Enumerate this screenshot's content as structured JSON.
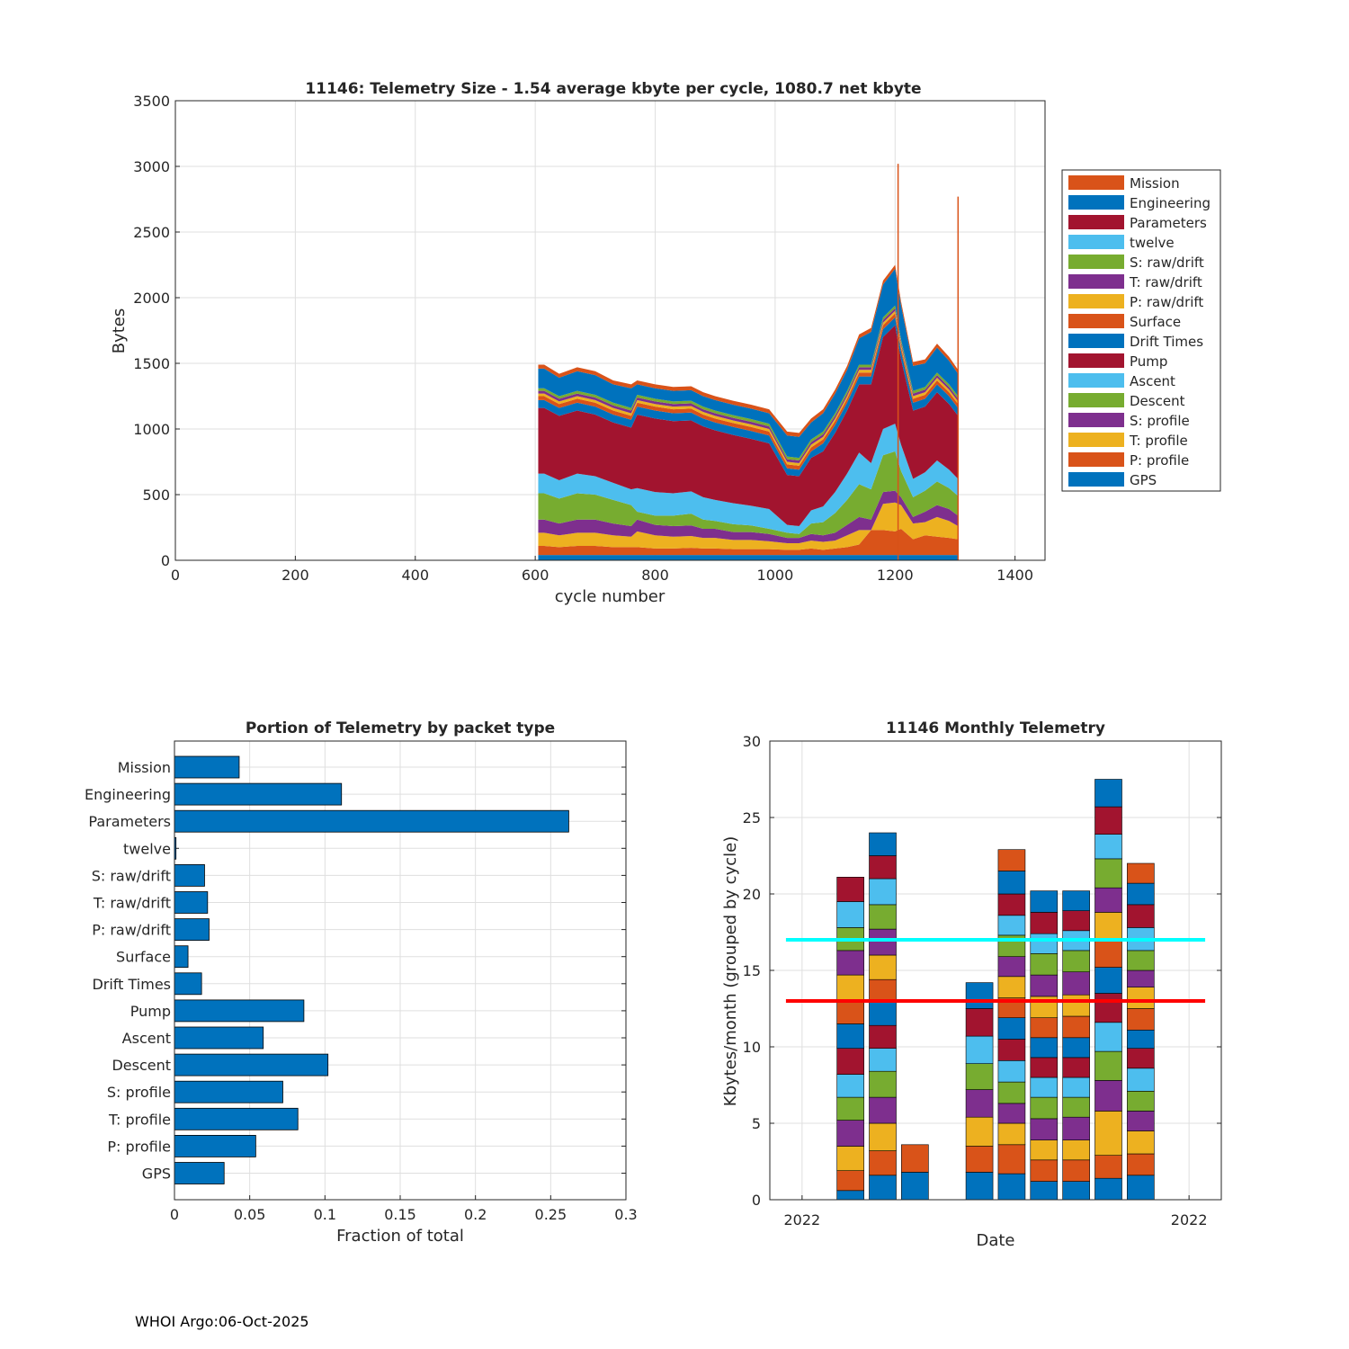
{
  "footer": "WHOI Argo:06-Oct-2025",
  "colors": {
    "orange": "#D95319",
    "blue": "#0072BD",
    "darkred": "#A2142F",
    "lightblue": "#4DBEEE",
    "green": "#77AC30",
    "purple": "#7E2F8E",
    "yellow": "#EDB120",
    "cyan": "#00FFFF",
    "red": "#FF0000",
    "grid": "#DFDFDF",
    "axis": "#262626"
  },
  "chart_data": [
    {
      "id": "telemetry-size",
      "type": "area",
      "title": "11146: Telemetry Size - 1.54 average kbyte per cycle, 1080.7 net kbyte",
      "xlabel": "cycle number",
      "ylabel": "Bytes",
      "xlim": [
        0,
        1450
      ],
      "ylim": [
        0,
        3500
      ],
      "xticks": [
        "0",
        "200",
        "400",
        "600",
        "800",
        "1000",
        "1200",
        "1400"
      ],
      "xtick_values": [
        0,
        200,
        400,
        600,
        800,
        1000,
        1200,
        1400
      ],
      "yticks": [
        "0",
        "500",
        "1000",
        "1500",
        "2000",
        "2500",
        "3000",
        "3500"
      ],
      "ytick_values": [
        0,
        500,
        1000,
        1500,
        2000,
        2500,
        3000,
        3500
      ],
      "grid": true,
      "legend_position": "outside-right",
      "legend": [
        "Mission",
        "Engineering",
        "Parameters",
        "twelve",
        "S: raw/drift",
        "T: raw/drift",
        "P: raw/drift",
        "Surface",
        "Drift Times",
        "Pump",
        "Ascent",
        "Descent",
        "S: profile",
        "T: profile",
        "P: profile",
        "GPS"
      ],
      "legend_colors": [
        "#D95319",
        "#0072BD",
        "#A2142F",
        "#4DBEEE",
        "#77AC30",
        "#7E2F8E",
        "#EDB120",
        "#D95319",
        "#0072BD",
        "#A2142F",
        "#4DBEEE",
        "#77AC30",
        "#7E2F8E",
        "#EDB120",
        "#D95319",
        "#0072BD"
      ],
      "stack_order_bottom_up": [
        "GPS",
        "P: profile",
        "T: profile",
        "S: profile",
        "Descent",
        "Ascent",
        "Pump",
        "Drift Times",
        "Surface",
        "P: raw/drift",
        "T: raw/drift",
        "S: raw/drift",
        "twelve",
        "Parameters",
        "Engineering",
        "Mission"
      ],
      "x": [
        605,
        615,
        640,
        670,
        700,
        730,
        760,
        770,
        800,
        830,
        860,
        880,
        900,
        930,
        960,
        990,
        1020,
        1040,
        1060,
        1080,
        1100,
        1120,
        1140,
        1160,
        1180,
        1200,
        1210,
        1230,
        1250,
        1270,
        1290,
        1305
      ],
      "series": [
        {
          "name": "GPS",
          "values": [
            40,
            40,
            40,
            40,
            40,
            40,
            40,
            40,
            40,
            40,
            40,
            40,
            40,
            40,
            40,
            40,
            40,
            40,
            40,
            40,
            40,
            40,
            40,
            40,
            40,
            40,
            40,
            40,
            40,
            40,
            40,
            40
          ]
        },
        {
          "name": "P: profile",
          "values": [
            70,
            70,
            60,
            70,
            70,
            60,
            60,
            60,
            50,
            50,
            55,
            50,
            50,
            45,
            45,
            45,
            40,
            40,
            50,
            40,
            50,
            60,
            80,
            190,
            190,
            180,
            200,
            120,
            150,
            140,
            130,
            120
          ]
        },
        {
          "name": "T: profile",
          "values": [
            100,
            100,
            90,
            100,
            100,
            90,
            80,
            120,
            100,
            90,
            90,
            80,
            80,
            70,
            70,
            60,
            50,
            50,
            60,
            60,
            60,
            90,
            110,
            0,
            200,
            220,
            180,
            120,
            100,
            150,
            130,
            100
          ]
        },
        {
          "name": "S: profile",
          "values": [
            100,
            100,
            90,
            100,
            100,
            90,
            80,
            90,
            80,
            80,
            80,
            70,
            70,
            60,
            60,
            55,
            40,
            40,
            50,
            50,
            60,
            80,
            100,
            80,
            90,
            90,
            60,
            50,
            80,
            90,
            90,
            80
          ]
        },
        {
          "name": "Descent",
          "values": [
            200,
            200,
            190,
            200,
            190,
            180,
            160,
            60,
            70,
            80,
            90,
            70,
            60,
            60,
            50,
            40,
            40,
            30,
            80,
            100,
            150,
            190,
            250,
            230,
            280,
            300,
            200,
            150,
            160,
            180,
            160,
            150
          ]
        },
        {
          "name": "Ascent",
          "values": [
            150,
            150,
            140,
            150,
            140,
            130,
            120,
            180,
            180,
            170,
            170,
            170,
            160,
            160,
            150,
            150,
            60,
            60,
            100,
            120,
            160,
            200,
            240,
            200,
            200,
            210,
            200,
            140,
            140,
            160,
            140,
            130
          ]
        },
        {
          "name": "Pump",
          "values": [
            500,
            500,
            490,
            480,
            470,
            460,
            470,
            560,
            560,
            550,
            540,
            540,
            530,
            520,
            510,
            500,
            380,
            380,
            400,
            420,
            450,
            480,
            520,
            600,
            700,
            750,
            650,
            520,
            500,
            520,
            500,
            480
          ]
        },
        {
          "name": "Drift Times",
          "values": [
            60,
            60,
            60,
            60,
            60,
            60,
            60,
            60,
            60,
            60,
            60,
            60,
            60,
            60,
            60,
            60,
            50,
            50,
            50,
            60,
            60,
            60,
            60,
            60,
            60,
            60,
            60,
            60,
            60,
            60,
            60,
            60
          ]
        },
        {
          "name": "Surface",
          "values": [
            30,
            30,
            30,
            30,
            30,
            30,
            30,
            30,
            30,
            30,
            30,
            30,
            30,
            30,
            30,
            30,
            30,
            30,
            30,
            30,
            30,
            30,
            30,
            30,
            30,
            30,
            30,
            30,
            30,
            30,
            30,
            30
          ]
        },
        {
          "name": "P: raw/drift",
          "values": [
            20,
            20,
            20,
            20,
            20,
            20,
            20,
            20,
            20,
            20,
            20,
            20,
            20,
            20,
            20,
            20,
            20,
            20,
            20,
            20,
            20,
            20,
            20,
            20,
            20,
            20,
            20,
            20,
            20,
            20,
            20,
            20
          ]
        },
        {
          "name": "T: raw/drift",
          "values": [
            20,
            20,
            20,
            20,
            20,
            20,
            20,
            20,
            20,
            20,
            20,
            20,
            20,
            20,
            20,
            20,
            20,
            20,
            20,
            20,
            20,
            20,
            20,
            20,
            20,
            20,
            20,
            20,
            20,
            20,
            20,
            20
          ]
        },
        {
          "name": "S: raw/drift",
          "values": [
            20,
            20,
            20,
            20,
            20,
            20,
            20,
            20,
            20,
            20,
            20,
            20,
            20,
            20,
            20,
            20,
            20,
            20,
            20,
            20,
            20,
            20,
            20,
            20,
            20,
            20,
            20,
            20,
            20,
            20,
            20,
            20
          ]
        },
        {
          "name": "twelve",
          "values": [
            0,
            0,
            0,
            0,
            0,
            0,
            0,
            0,
            0,
            0,
            0,
            0,
            0,
            0,
            0,
            0,
            0,
            0,
            0,
            0,
            0,
            0,
            0,
            0,
            0,
            0,
            0,
            0,
            0,
            0,
            0,
            0
          ]
        },
        {
          "name": "Parameters",
          "values": [
            0,
            0,
            0,
            0,
            0,
            0,
            0,
            0,
            0,
            0,
            0,
            0,
            0,
            0,
            0,
            0,
            0,
            0,
            0,
            0,
            0,
            0,
            0,
            0,
            0,
            0,
            0,
            0,
            0,
            0,
            0,
            0
          ]
        },
        {
          "name": "Engineering",
          "values": [
            150,
            150,
            140,
            150,
            150,
            140,
            150,
            80,
            80,
            80,
            80,
            80,
            80,
            80,
            80,
            80,
            160,
            160,
            130,
            140,
            150,
            160,
            200,
            250,
            250,
            280,
            260,
            190,
            180,
            190,
            180,
            170
          ]
        },
        {
          "name": "Mission",
          "values": [
            30,
            30,
            30,
            30,
            30,
            30,
            30,
            30,
            30,
            30,
            30,
            30,
            30,
            30,
            30,
            30,
            30,
            30,
            30,
            30,
            30,
            30,
            30,
            30,
            30,
            30,
            30,
            30,
            30,
            30,
            30,
            30
          ]
        }
      ],
      "peaks": [
        {
          "x": 1205,
          "y": 3020
        },
        {
          "x": 1305,
          "y": 2770
        }
      ]
    },
    {
      "id": "portion-by-packet",
      "type": "bar",
      "orientation": "horizontal",
      "title": "Portion of Telemetry by packet type",
      "xlabel": "Fraction of total",
      "ylabel": "",
      "xlim": [
        0,
        0.3
      ],
      "xticks": [
        "0",
        "0.05",
        "0.1",
        "0.15",
        "0.2",
        "0.25",
        "0.3"
      ],
      "xtick_values": [
        0,
        0.05,
        0.1,
        0.15,
        0.2,
        0.25,
        0.3
      ],
      "grid": true,
      "bar_color": "#0072BD",
      "categories": [
        "Mission",
        "Engineering",
        "Parameters",
        "twelve",
        "S: raw/drift",
        "T: raw/drift",
        "P: raw/drift",
        "Surface",
        "Drift Times",
        "Pump",
        "Ascent",
        "Descent",
        "S: profile",
        "T: profile",
        "P: profile",
        "GPS"
      ],
      "values": [
        0.043,
        0.111,
        0.262,
        0.001,
        0.02,
        0.022,
        0.023,
        0.009,
        0.018,
        0.086,
        0.059,
        0.102,
        0.072,
        0.082,
        0.054,
        0.033
      ]
    },
    {
      "id": "monthly-telemetry",
      "type": "bar",
      "stacked": true,
      "title": "11146 Monthly Telemetry",
      "xlabel": "Date",
      "ylabel": "Kbytes/month (grouped by cycle)",
      "xlim": [
        0,
        14
      ],
      "ylim": [
        0,
        30
      ],
      "xticks": [
        "2022",
        "2022"
      ],
      "xtick_values": [
        1,
        13
      ],
      "yticks": [
        "0",
        "5",
        "10",
        "15",
        "20",
        "25",
        "30"
      ],
      "ytick_values": [
        0,
        5,
        10,
        15,
        20,
        25,
        30
      ],
      "grid": true,
      "reference_lines": [
        {
          "name": "cyan-line",
          "value": 17,
          "color": "#00FFFF"
        },
        {
          "name": "red-line",
          "value": 13,
          "color": "#FF0000"
        }
      ],
      "color_cycle": [
        "#0072BD",
        "#D95319",
        "#EDB120",
        "#7E2F8E",
        "#77AC30",
        "#4DBEEE",
        "#A2142F"
      ],
      "bar_positions": [
        2.5,
        3.5,
        4.5,
        6.5,
        7.5,
        8.5,
        9.5,
        10.5,
        11.5
      ],
      "bars": [
        {
          "segments": [
            0.6,
            1.3,
            1.6,
            1.7,
            1.5,
            1.5,
            1.7,
            1.6,
            1.5,
            1.7,
            1.6,
            1.5,
            1.7,
            1.6
          ]
        },
        {
          "segments": [
            1.6,
            1.6,
            1.8,
            1.7,
            1.7,
            1.5,
            1.5,
            1.5,
            1.5,
            1.6,
            1.7,
            1.6,
            1.7,
            1.5,
            1.5
          ]
        },
        {
          "segments": [
            1.8,
            1.8
          ]
        },
        {
          "segments": [
            1.8,
            1.7,
            1.9,
            1.8,
            1.7,
            1.8,
            1.8,
            1.7
          ]
        },
        {
          "segments": [
            1.7,
            1.9,
            1.4,
            1.3,
            1.4,
            1.4,
            1.4,
            1.4,
            1.3,
            1.4,
            1.3,
            1.4,
            1.3,
            1.4,
            1.5,
            1.4
          ]
        },
        {
          "segments": [
            1.2,
            1.4,
            1.3,
            1.4,
            1.4,
            1.3,
            1.3,
            1.3,
            1.3,
            1.4,
            1.4,
            1.4,
            1.3,
            1.4,
            1.4
          ]
        },
        {
          "segments": [
            1.2,
            1.4,
            1.3,
            1.5,
            1.3,
            1.3,
            1.3,
            1.3,
            1.4,
            1.4,
            1.5,
            1.4,
            1.3,
            1.3,
            1.3
          ]
        },
        {
          "segments": [
            1.4,
            1.5,
            2.9,
            2.0,
            1.9,
            1.9,
            1.9,
            1.7,
            1.9,
            1.7,
            1.6,
            1.9,
            1.6,
            1.8,
            1.8
          ]
        },
        {
          "segments": [
            1.6,
            1.4,
            1.5,
            1.3,
            1.3,
            1.5,
            1.3,
            1.2,
            1.4,
            1.4,
            1.1,
            1.3,
            1.5,
            1.5,
            1.4,
            1.3
          ]
        }
      ]
    }
  ]
}
